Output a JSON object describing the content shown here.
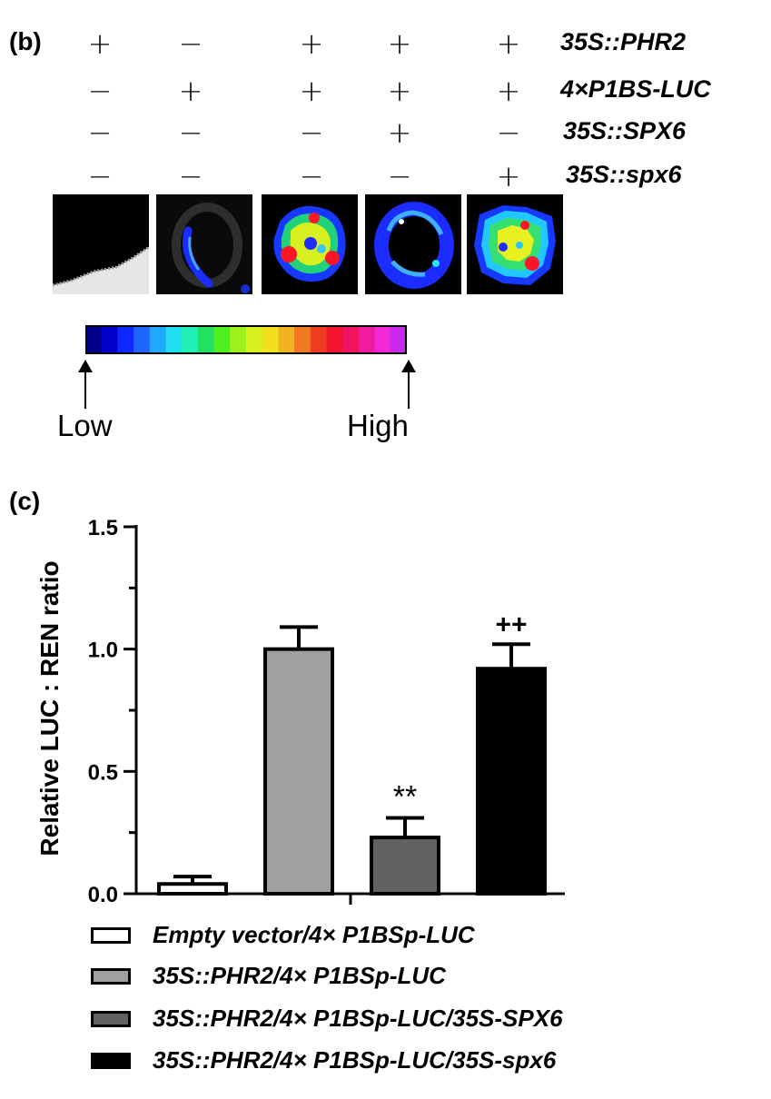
{
  "panel_b": {
    "label": "(b)",
    "rows": [
      {
        "construct": "35S::PHR2",
        "signs": [
          "+",
          "−",
          "+",
          "+",
          "+"
        ]
      },
      {
        "construct": "4×P1BS-LUC",
        "signs": [
          "−",
          "+",
          "+",
          "+",
          "+"
        ]
      },
      {
        "construct": "35S::SPX6",
        "signs": [
          "−",
          "−",
          "−",
          "+",
          "−"
        ]
      },
      {
        "construct": "35S::spx6",
        "signs": [
          "−",
          "−",
          "−",
          "−",
          "+"
        ]
      }
    ],
    "scale": {
      "low_label": "Low",
      "high_label": "High"
    }
  },
  "panel_c": {
    "label": "(c)"
  },
  "chart_data": {
    "type": "bar",
    "ylabel": "Relative LUC : REN ratio",
    "ylim": [
      0,
      1.5
    ],
    "yticks": [
      0.0,
      0.5,
      1.0,
      1.5
    ],
    "ytick_labels": [
      "0.0",
      "0.5",
      "1.0",
      "1.5"
    ],
    "minor_ticks": true,
    "grid": false,
    "legend_placement": "bottom",
    "series": [
      {
        "name": "Empty vector/4× P1BSp-LUC",
        "value": 0.04,
        "error": 0.03,
        "color": "#ffffff",
        "annotation": ""
      },
      {
        "name": "35S::PHR2/4× P1BSp-LUC",
        "value": 1.0,
        "error": 0.09,
        "color": "#a0a0a0",
        "annotation": ""
      },
      {
        "name": "35S::PHR2/4× P1BSp-LUC/35S-SPX6",
        "value": 0.23,
        "error": 0.08,
        "color": "#616161",
        "annotation": "**"
      },
      {
        "name": "35S::PHR2/4× P1BSp-LUC/35S-spx6",
        "value": 0.92,
        "error": 0.1,
        "color": "#000000",
        "annotation": "++"
      }
    ]
  }
}
